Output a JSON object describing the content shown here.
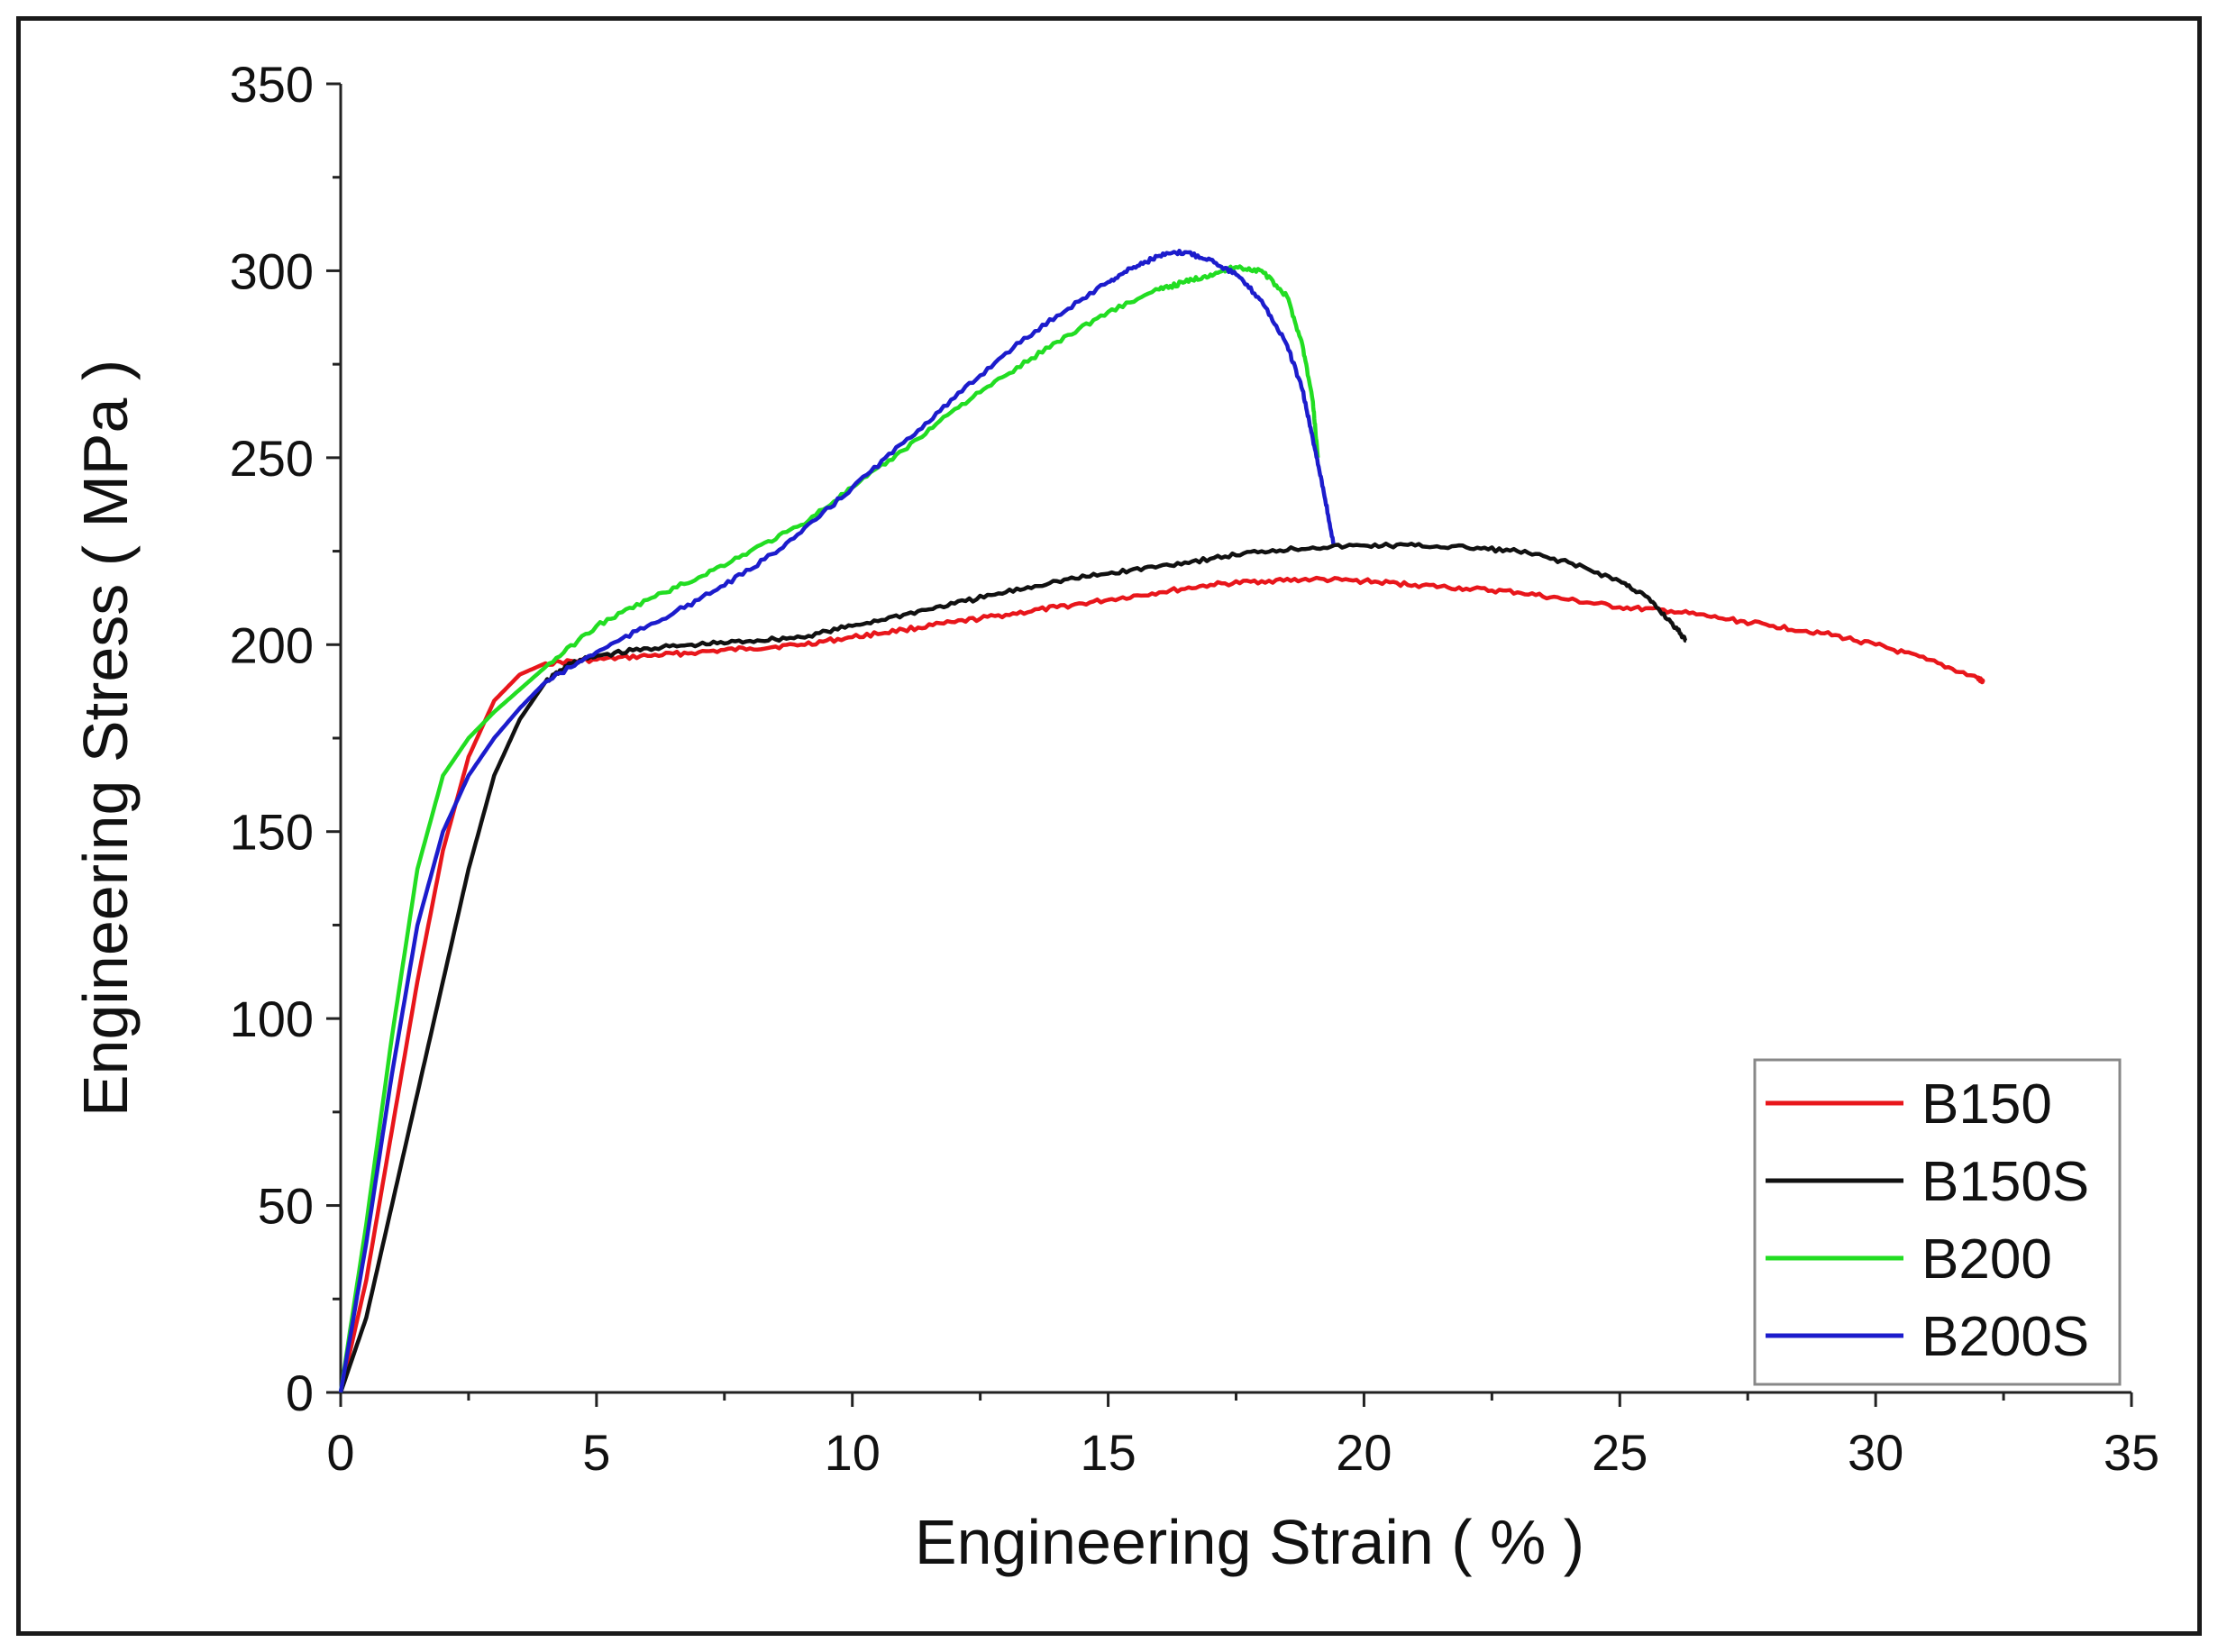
{
  "chart_data": {
    "type": "line",
    "title": "",
    "xlabel": "Engineering Strain ( % )",
    "ylabel": "Engineering Stress ( MPa )",
    "xlim": [
      0,
      35
    ],
    "ylim": [
      0,
      350
    ],
    "xticks": [
      0,
      5,
      10,
      15,
      20,
      25,
      30,
      35
    ],
    "yticks": [
      0,
      50,
      100,
      150,
      200,
      250,
      300,
      350
    ],
    "grid": false,
    "legend_position": "bottom-right",
    "series": [
      {
        "name": "B150",
        "color": "#e8161b",
        "points": [
          [
            0,
            0
          ],
          [
            0.5,
            30
          ],
          [
            1,
            70
          ],
          [
            1.5,
            110
          ],
          [
            2,
            145
          ],
          [
            2.5,
            170
          ],
          [
            3,
            185
          ],
          [
            3.5,
            192
          ],
          [
            4,
            195
          ],
          [
            5,
            196
          ],
          [
            6,
            197
          ],
          [
            7,
            198
          ],
          [
            8,
            199
          ],
          [
            9,
            200
          ],
          [
            10,
            202
          ],
          [
            11,
            204
          ],
          [
            12,
            206
          ],
          [
            13,
            208
          ],
          [
            14,
            210
          ],
          [
            15,
            212
          ],
          [
            16,
            214
          ],
          [
            17,
            216
          ],
          [
            18,
            217
          ],
          [
            19,
            217.5
          ],
          [
            20,
            217
          ],
          [
            21,
            216
          ],
          [
            22,
            215
          ],
          [
            23,
            214
          ],
          [
            24,
            212
          ],
          [
            25,
            210
          ],
          [
            26,
            209
          ],
          [
            27,
            207
          ],
          [
            28,
            205
          ],
          [
            29,
            203
          ],
          [
            30,
            200
          ],
          [
            31,
            196
          ],
          [
            32,
            191
          ],
          [
            32.1,
            190
          ]
        ]
      },
      {
        "name": "B150S",
        "color": "#111111",
        "points": [
          [
            0,
            0
          ],
          [
            0.5,
            20
          ],
          [
            1,
            50
          ],
          [
            1.5,
            80
          ],
          [
            2,
            110
          ],
          [
            2.5,
            140
          ],
          [
            3,
            165
          ],
          [
            3.5,
            180
          ],
          [
            4,
            190
          ],
          [
            4.5,
            195
          ],
          [
            5,
            197
          ],
          [
            6,
            199
          ],
          [
            7,
            200
          ],
          [
            8,
            201
          ],
          [
            9,
            202
          ],
          [
            10,
            205
          ],
          [
            11,
            208
          ],
          [
            12,
            211
          ],
          [
            13,
            214
          ],
          [
            14,
            217
          ],
          [
            15,
            219
          ],
          [
            16,
            221
          ],
          [
            17,
            223
          ],
          [
            18,
            225
          ],
          [
            19,
            226
          ],
          [
            20,
            226.5
          ],
          [
            21,
            226.5
          ],
          [
            22,
            226
          ],
          [
            23,
            225
          ],
          [
            24,
            222
          ],
          [
            25,
            217
          ],
          [
            25.5,
            213
          ],
          [
            26,
            206
          ],
          [
            26.3,
            201
          ]
        ]
      },
      {
        "name": "B200",
        "color": "#22dd22",
        "points": [
          [
            0,
            0
          ],
          [
            0.5,
            45
          ],
          [
            1,
            95
          ],
          [
            1.5,
            140
          ],
          [
            2,
            165
          ],
          [
            2.5,
            175
          ],
          [
            3,
            182
          ],
          [
            3.5,
            188
          ],
          [
            4,
            194
          ],
          [
            5,
            205
          ],
          [
            6,
            212
          ],
          [
            7,
            218
          ],
          [
            8,
            225
          ],
          [
            9,
            232
          ],
          [
            10,
            242
          ],
          [
            11,
            252
          ],
          [
            12,
            263
          ],
          [
            13,
            272
          ],
          [
            14,
            281
          ],
          [
            15,
            289
          ],
          [
            16,
            295
          ],
          [
            16.5,
            297
          ],
          [
            17,
            299
          ],
          [
            17.5,
            301
          ],
          [
            18,
            300
          ],
          [
            18.5,
            293
          ],
          [
            18.8,
            280
          ],
          [
            19,
            265
          ],
          [
            19.1,
            250
          ]
        ]
      },
      {
        "name": "B200S",
        "color": "#1c1ccc",
        "points": [
          [
            0,
            0
          ],
          [
            0.5,
            40
          ],
          [
            1,
            85
          ],
          [
            1.5,
            125
          ],
          [
            2,
            150
          ],
          [
            2.5,
            165
          ],
          [
            3,
            175
          ],
          [
            3.5,
            183
          ],
          [
            4,
            190
          ],
          [
            5,
            198
          ],
          [
            6,
            205
          ],
          [
            7,
            212
          ],
          [
            8,
            220
          ],
          [
            9,
            230
          ],
          [
            10,
            242
          ],
          [
            11,
            254
          ],
          [
            12,
            266
          ],
          [
            13,
            278
          ],
          [
            14,
            288
          ],
          [
            15,
            297
          ],
          [
            15.5,
            301
          ],
          [
            16,
            304
          ],
          [
            16.5,
            305
          ],
          [
            17,
            303
          ],
          [
            17.5,
            299
          ],
          [
            18,
            292
          ],
          [
            18.5,
            280
          ],
          [
            18.8,
            268
          ],
          [
            19,
            255
          ],
          [
            19.2,
            242
          ],
          [
            19.4,
            227
          ]
        ]
      }
    ]
  }
}
